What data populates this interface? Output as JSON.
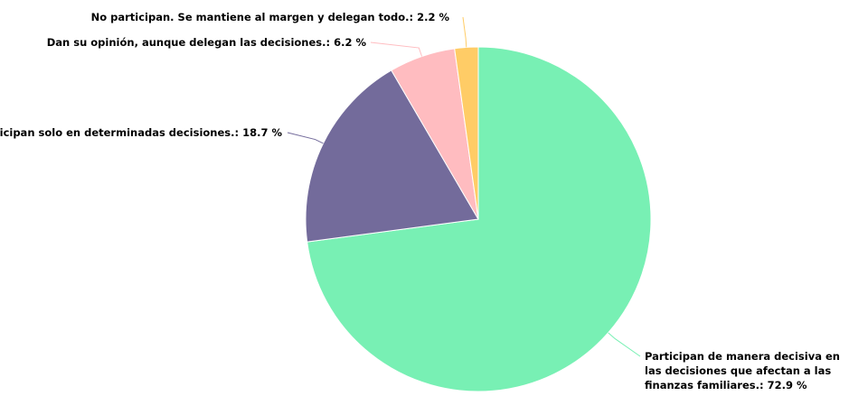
{
  "chart_data": {
    "type": "pie",
    "categories": [
      "Participan de manera decisiva en las decisiones que afectan a las finanzas familiares.:",
      "Participan solo en determinadas decisiones.:",
      "Dan su opinión, aunque delegan las decisiones.:",
      "No participan. Se mantiene al margen y delegan todo.:"
    ],
    "values": [
      72.9,
      18.7,
      6.2,
      2.2
    ],
    "value_labels": [
      "72.9 %",
      "18.7 %",
      "6.2 %",
      "2.2 %"
    ],
    "colors": [
      "#78f0b4",
      "#736b9b",
      "#ffbcc0",
      "#ffcc66"
    ]
  }
}
